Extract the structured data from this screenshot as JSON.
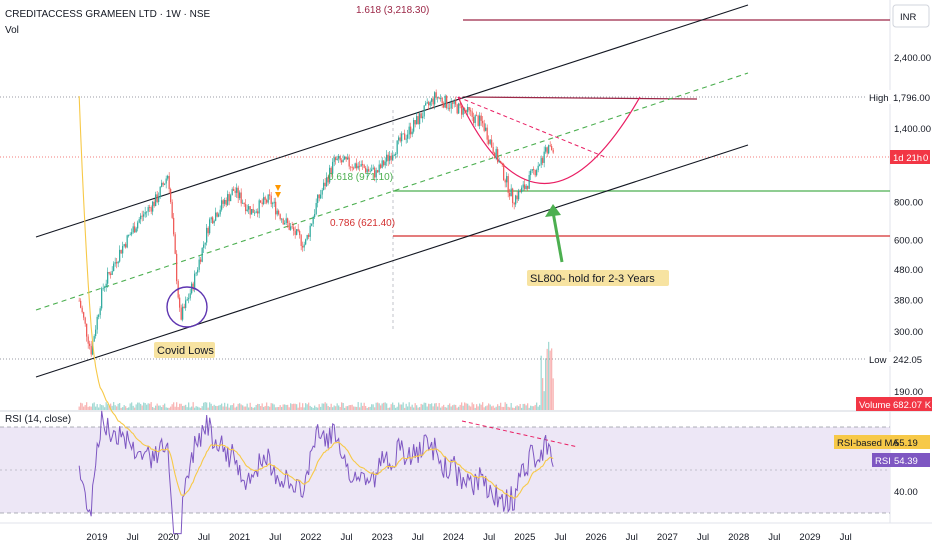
{
  "header": {
    "title": "CREDITACCESS GRAMEEN LTD · 1W · NSE",
    "volume_label": "Vol"
  },
  "currency_badge": "INR",
  "price_axis": {
    "ticks": [
      "2,400.00",
      "1,400.00",
      "800.00",
      "600.00",
      "480.00",
      "380.00",
      "300.00",
      "190.00"
    ],
    "tags": {
      "high_label": "High",
      "high_value": "1,796.00",
      "low_label": "Low",
      "low_value": "242.05",
      "last_label": "1d 21h",
      "last_value": "0",
      "volume_label": "Volume",
      "volume_value": "682.07 K"
    }
  },
  "rsi_panel": {
    "title": "RSI (14, close)",
    "ticks": [
      "40.00"
    ],
    "tags": {
      "ma_label": "RSI-based MA",
      "ma_value": "55.19",
      "rsi_label": "RSI",
      "rsi_value": "54.39"
    }
  },
  "time_axis": [
    "2019",
    "Jul",
    "2020",
    "Jul",
    "2021",
    "Jul",
    "2022",
    "Jul",
    "2023",
    "Jul",
    "2024",
    "Jul",
    "2025",
    "Jul",
    "2026",
    "Jul",
    "2027",
    "Jul",
    "2028",
    "Jul",
    "2029",
    "Jul"
  ],
  "annotations": {
    "fib_1618": "1.618 (3,218.30)",
    "fib_0618": "0.618 (971.10)",
    "fib_0786": "0.786 (621.40)",
    "covid": "Covid Lows",
    "target": "SL800- hold for 2-3 Years"
  },
  "colors": {
    "candle_up": "#26a69a",
    "candle_down": "#ef5350",
    "channel": "#131722",
    "midline": "#4caf50",
    "fib": "#9c2747",
    "arc": "#e91e63",
    "rsi": "#7e57c2",
    "rsi_ma": "#f7c948",
    "rsi_band": "#ede7f6",
    "callout": "#f7e3a1"
  },
  "chart_data": {
    "type": "candlestick",
    "interval": "1W",
    "price_scale": "log",
    "y_ticks": [
      2400,
      1400,
      800,
      600,
      480,
      380,
      300,
      190
    ],
    "x_range": [
      "2019-01",
      "2029-12"
    ],
    "series": [
      {
        "date": "2018-10",
        "close": 380
      },
      {
        "date": "2018-12",
        "close": 260
      },
      {
        "date": "2019-02",
        "close": 420
      },
      {
        "date": "2019-05",
        "close": 560
      },
      {
        "date": "2019-08",
        "close": 700
      },
      {
        "date": "2019-11",
        "close": 820
      },
      {
        "date": "2020-01",
        "close": 1000
      },
      {
        "date": "2020-03",
        "close": 330
      },
      {
        "date": "2020-05",
        "close": 420
      },
      {
        "date": "2020-08",
        "close": 700
      },
      {
        "date": "2020-12",
        "close": 880
      },
      {
        "date": "2021-03",
        "close": 750
      },
      {
        "date": "2021-06",
        "close": 820
      },
      {
        "date": "2021-09",
        "close": 680
      },
      {
        "date": "2021-12",
        "close": 580
      },
      {
        "date": "2022-02",
        "close": 800
      },
      {
        "date": "2022-05",
        "close": 1100
      },
      {
        "date": "2022-09",
        "close": 1060
      },
      {
        "date": "2022-12",
        "close": 1000
      },
      {
        "date": "2023-03",
        "close": 1200
      },
      {
        "date": "2023-07",
        "close": 1500
      },
      {
        "date": "2023-10",
        "close": 1796
      },
      {
        "date": "2023-12",
        "close": 1700
      },
      {
        "date": "2024-03",
        "close": 1600
      },
      {
        "date": "2024-06",
        "close": 1450
      },
      {
        "date": "2024-09",
        "close": 1050
      },
      {
        "date": "2024-11",
        "close": 820
      },
      {
        "date": "2025-01",
        "close": 900
      },
      {
        "date": "2025-03",
        "close": 1050
      },
      {
        "date": "2025-05",
        "close": 1200
      },
      {
        "date": "2025-06",
        "close": 1220
      }
    ],
    "levels": [
      {
        "label": "1.618",
        "value": 3218.3
      },
      {
        "label": "0.618",
        "value": 971.1
      },
      {
        "label": "0.786",
        "value": 621.4
      },
      {
        "label": "High",
        "value": 1796.0
      },
      {
        "label": "Low",
        "value": 242.05
      }
    ],
    "volume_last": "682.07 K",
    "rsi": {
      "period": 14,
      "value": 54.39,
      "ma": 55.19
    }
  }
}
